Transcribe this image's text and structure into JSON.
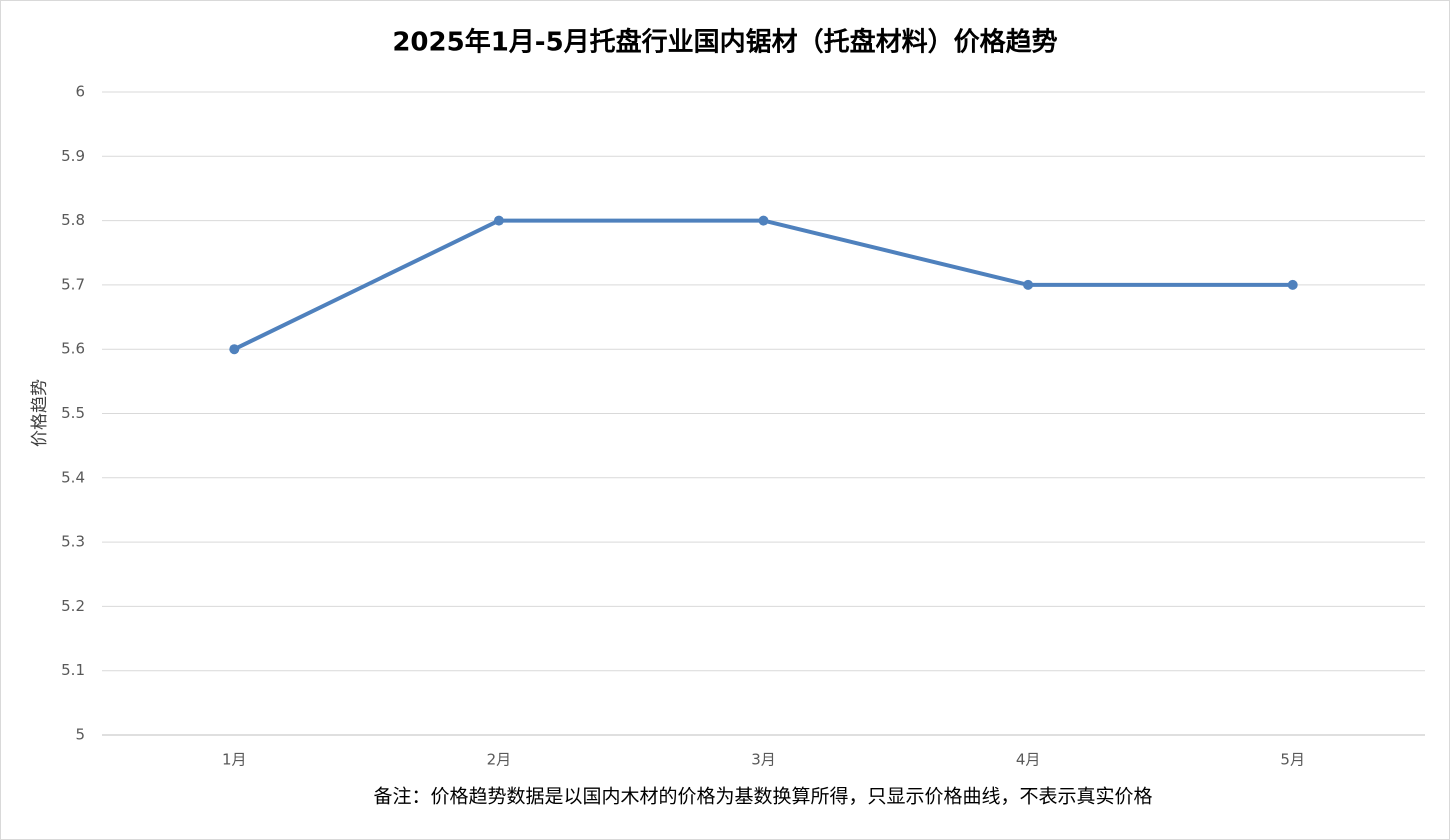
{
  "chart_data": {
    "type": "line",
    "title": "2025年1月-5月托盘行业国内锯材（托盘材料）价格趋势",
    "y_label": "价格趋势",
    "note": "备注：价格趋势数据是以国内木材的价格为基数换算所得，只显示价格曲线，不表示真实价格",
    "categories": [
      "1月",
      "2月",
      "3月",
      "4月",
      "5月"
    ],
    "series": [
      {
        "name": "价格趋势",
        "color": "#4f81bd",
        "values": [
          5.6,
          5.8,
          5.8,
          5.7,
          5.7
        ]
      }
    ],
    "ylim": [
      5,
      6
    ],
    "yticks": [
      5,
      5.1,
      5.2,
      5.3,
      5.4,
      5.5,
      5.6,
      5.7,
      5.8,
      5.9,
      6
    ],
    "grid": true
  }
}
